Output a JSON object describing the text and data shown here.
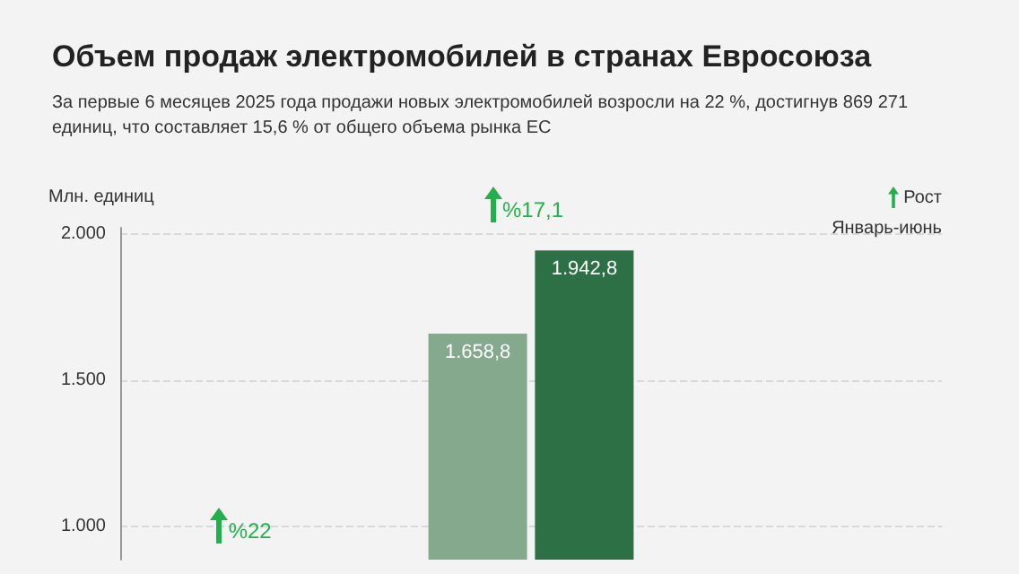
{
  "chart_data": {
    "type": "bar",
    "title": "Объем продаж электромобилей в странах Евросоюза",
    "subtitle": "За первые 6 месяцев 2025 года продажи новых электромобилей возросли на 22 %, достигнув 869 271 единиц, что составляет 15,6 % от общего объема рынка ЕС",
    "ylabel": "Млн. единиц",
    "legend_title": "Январь-июнь",
    "annotations": [
      "%22",
      "%17,1",
      "Рост"
    ],
    "categories": [
      null,
      null,
      null
    ],
    "series": [
      {
        "color": "#84a98c",
        "values": [
          null,
          1658.8,
          null
        ],
        "value_labels": [
          null,
          "1.658,8",
          null
        ]
      },
      {
        "color": "#2e7045",
        "values": [
          null,
          1942.8,
          null
        ],
        "value_labels": [
          null,
          "1.942,8",
          null
        ]
      }
    ],
    "ylim": [
      888,
      2020
    ],
    "yticks": [
      {
        "value": 1000,
        "label": "1.000"
      },
      {
        "value": 1500,
        "label": "1.500"
      },
      {
        "value": 2000,
        "label": "2.000"
      }
    ],
    "grid": "y"
  }
}
